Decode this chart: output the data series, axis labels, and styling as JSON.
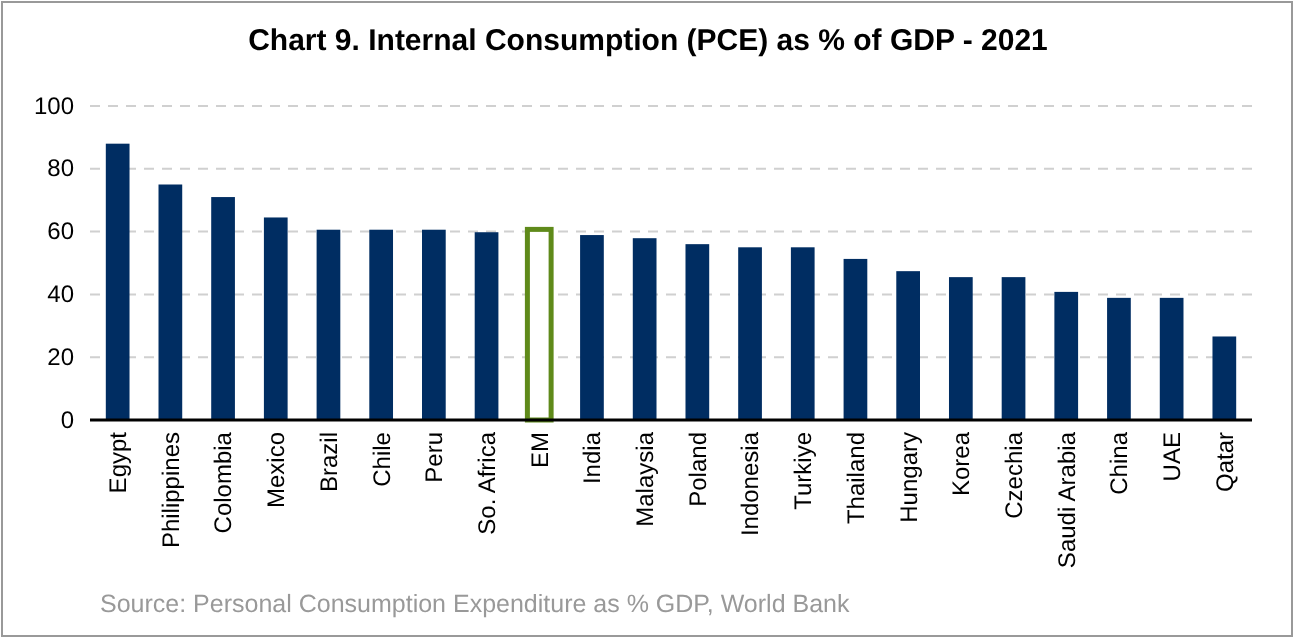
{
  "chart_data": {
    "type": "bar",
    "title": "Chart 9. Internal Consumption (PCE) as % of GDP - 2021",
    "categories": [
      "Egypt",
      "Philippines",
      "Colombia",
      "Mexico",
      "Brazil",
      "Chile",
      "Peru",
      "So. Africa",
      "EM",
      "India",
      "Malaysia",
      "Poland",
      "Indonesia",
      "Turkiye",
      "Thailand",
      "Hungary",
      "Korea",
      "Czechia",
      "Saudi Arabia",
      "China",
      "UAE",
      "Qatar"
    ],
    "values": [
      88,
      75,
      71,
      64.5,
      60.6,
      60.6,
      60.6,
      59.8,
      61.5,
      58.9,
      57.9,
      56,
      55,
      55,
      51.3,
      47.4,
      45.5,
      45.5,
      40.8,
      38.9,
      38.9,
      26.6
    ],
    "colors": [
      "#002d62",
      "#002d62",
      "#002d62",
      "#002d62",
      "#002d62",
      "#002d62",
      "#002d62",
      "#002d62",
      "#5f8a1a",
      "#002d62",
      "#002d62",
      "#002d62",
      "#002d62",
      "#002d62",
      "#002d62",
      "#002d62",
      "#002d62",
      "#002d62",
      "#002d62",
      "#002d62",
      "#002d62",
      "#002d62"
    ],
    "ylim": [
      0,
      100
    ],
    "yticks": [
      0,
      20,
      40,
      60,
      80,
      100
    ],
    "grid": "y",
    "annotations": [
      "Source: Personal Consumption Expenditure as % GDP, World Bank"
    ]
  }
}
